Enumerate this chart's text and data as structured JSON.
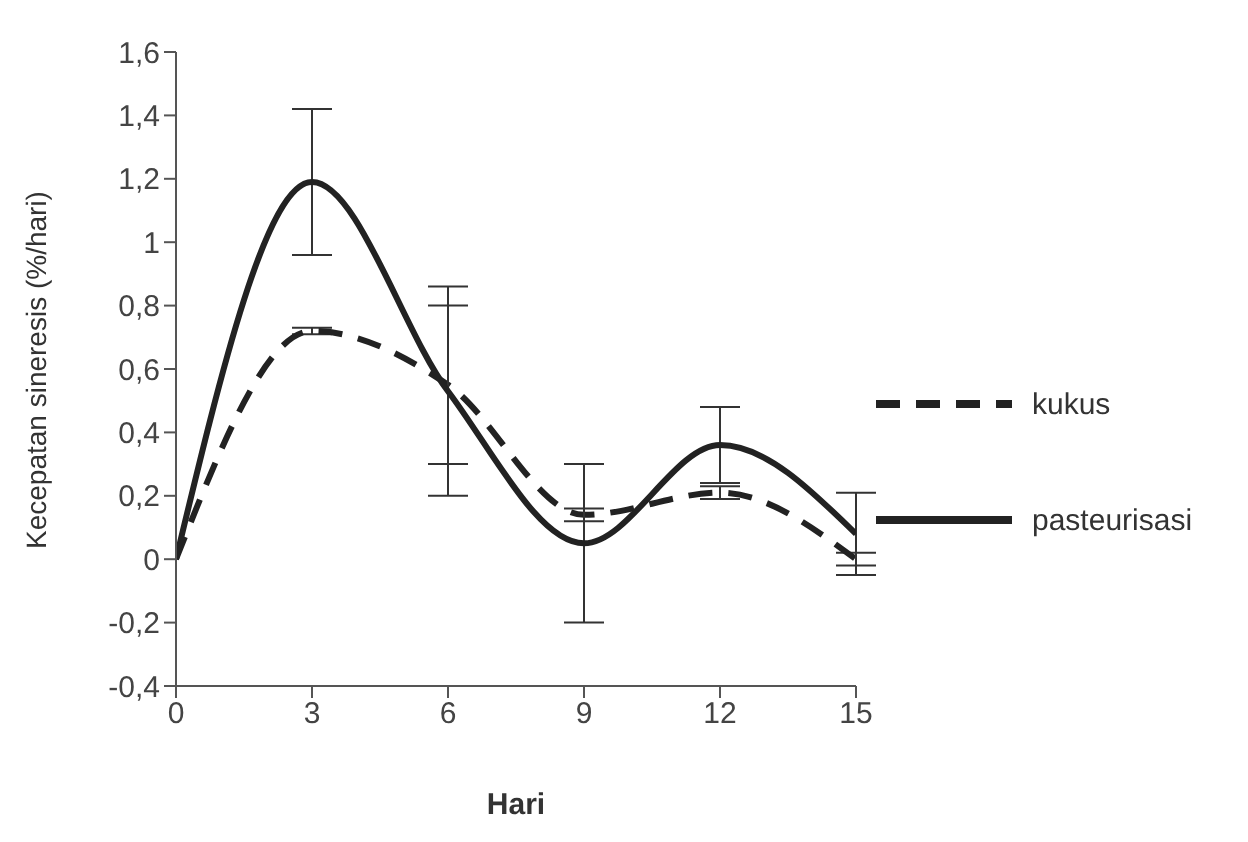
{
  "chart_data": {
    "type": "line",
    "xlabel": "Hari",
    "ylabel": "Kecepatan sineresis (%/hari)",
    "x": [
      0,
      3,
      6,
      9,
      12,
      15
    ],
    "series": [
      {
        "name": "kukus",
        "color": "#222222",
        "line_style": "dashed",
        "values": [
          0,
          0.72,
          0.55,
          0.14,
          0.21,
          0
        ],
        "errors": [
          null,
          0.01,
          0.25,
          0.02,
          0.02,
          0.02
        ]
      },
      {
        "name": "pasteurisasi",
        "color": "#222222",
        "line_style": "solid",
        "values": [
          0,
          1.19,
          0.53,
          0.05,
          0.36,
          0.08
        ],
        "errors": [
          null,
          0.23,
          0.33,
          0.25,
          0.12,
          0.13
        ]
      }
    ],
    "xlim": [
      0,
      15
    ],
    "xticks": [
      0,
      3,
      6,
      9,
      12,
      15
    ],
    "ylim": [
      -0.4,
      1.6
    ],
    "yticks": [
      {
        "value": -0.4,
        "label": "-0,4"
      },
      {
        "value": -0.2,
        "label": "-0,2"
      },
      0,
      {
        "value": 0.2,
        "label": "0,2"
      },
      {
        "value": 0.4,
        "label": "0,4"
      },
      {
        "value": 0.6,
        "label": "0,6"
      },
      {
        "value": 0.8,
        "label": "0,8"
      },
      1,
      {
        "value": 1.2,
        "label": "1,2"
      },
      {
        "value": 1.4,
        "label": "1,4"
      },
      {
        "value": 1.6,
        "label": "1,6"
      }
    ],
    "grid": false,
    "legend": "right",
    "marker": "none"
  }
}
